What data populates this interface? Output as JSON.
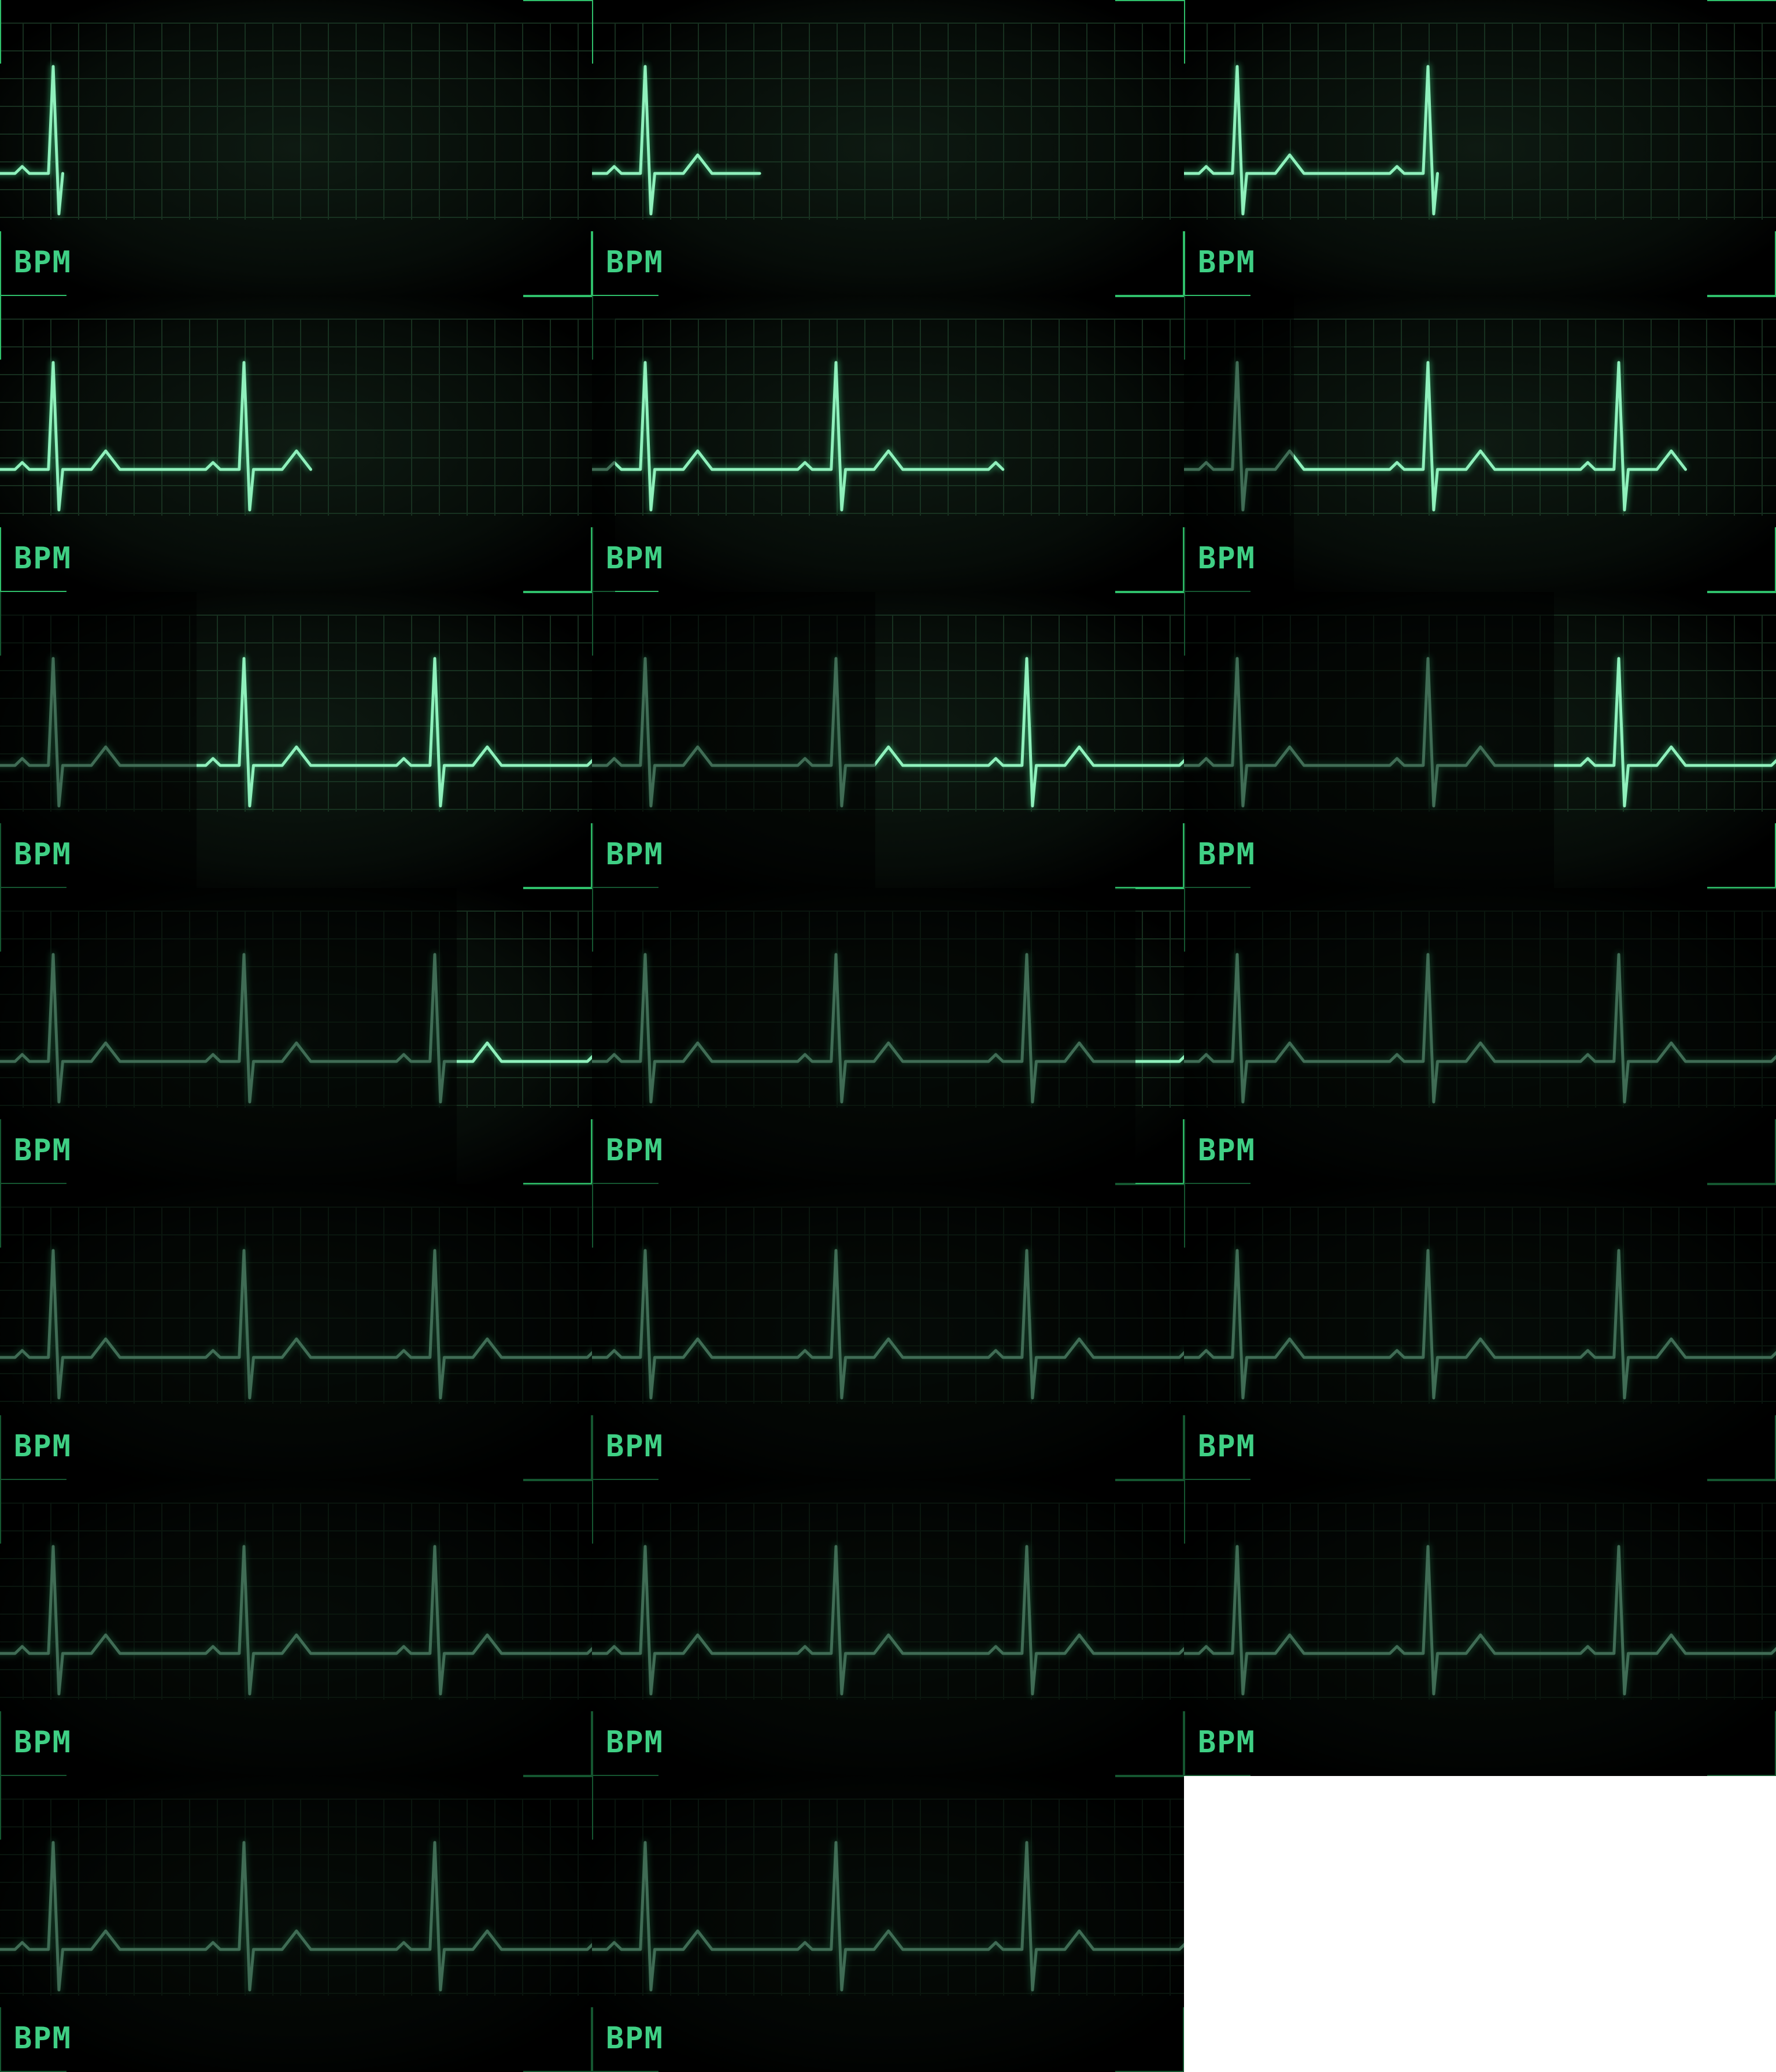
{
  "sprite_sheet": {
    "columns": 3,
    "rows": 7,
    "frame_count": 20,
    "label": "BPM",
    "colors": {
      "background": "#000000",
      "grid": "#1c3a26",
      "trace": "#8ff0bc",
      "trace_glow": "#3ecf82",
      "label": "#3fcf84",
      "crosshair": "#2fbf6a"
    }
  }
}
